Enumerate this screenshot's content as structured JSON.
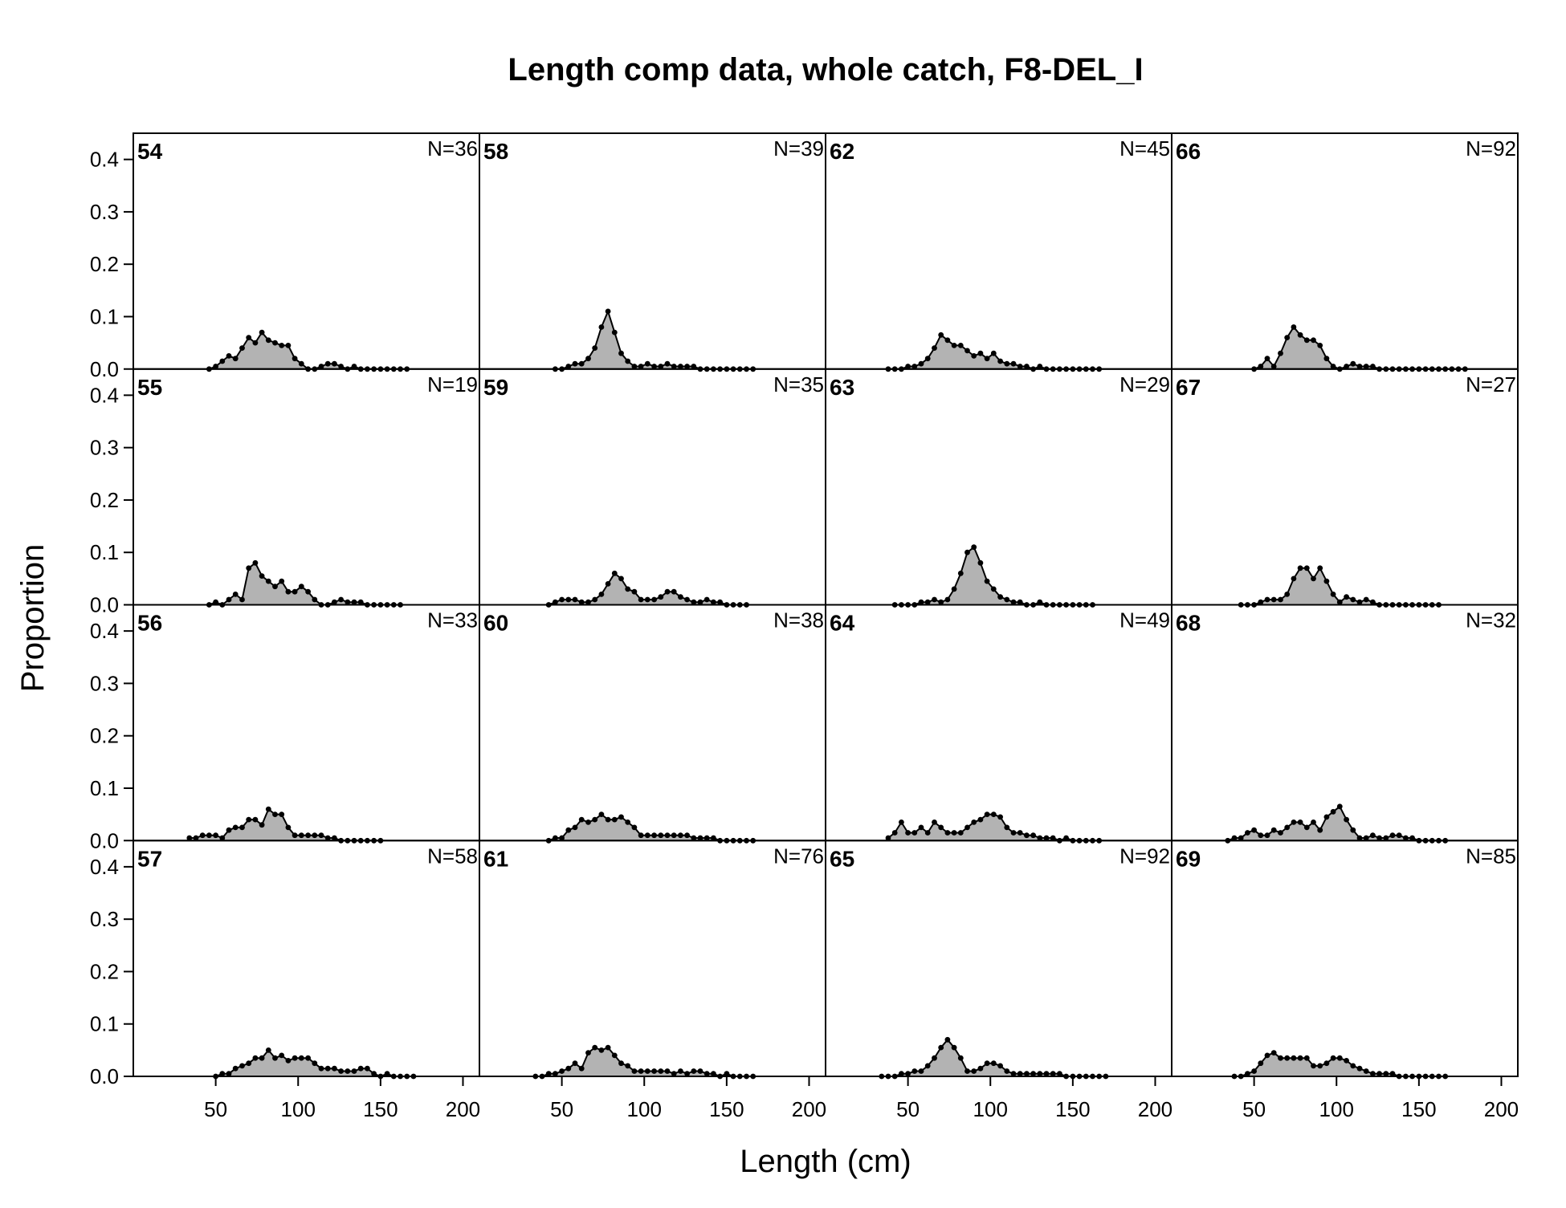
{
  "chart_data": {
    "type": "area",
    "title": "Length comp data, whole catch, F8-DEL_I",
    "xlabel": "Length (cm)",
    "ylabel": "Proportion",
    "xlim": [
      0,
      210
    ],
    "ylim": [
      0,
      0.45
    ],
    "x_ticks": [
      50,
      100,
      150,
      200
    ],
    "y_ticks": [
      0.0,
      0.1,
      0.2,
      0.3,
      0.4
    ],
    "x_tick_labels": [
      "50",
      "100",
      "150",
      "200"
    ],
    "y_tick_labels": [
      "0.0",
      "0.1",
      "0.2",
      "0.3",
      "0.4"
    ],
    "layout": {
      "columns": 4,
      "rows": 4,
      "order": "column-major"
    },
    "colors": {
      "fill": "#b3b3b3",
      "line": "#000000",
      "points": "#000000"
    },
    "panels": [
      {
        "label": "54",
        "n_label": "N=36",
        "x": [
          46,
          50,
          54,
          58,
          62,
          66,
          70,
          74,
          78,
          82,
          86,
          90,
          94,
          98,
          102,
          106,
          110,
          114,
          118,
          122,
          126,
          130,
          134,
          138,
          142,
          146,
          150,
          154,
          158,
          162,
          166
        ],
        "values": [
          0.0,
          0.005,
          0.015,
          0.025,
          0.02,
          0.04,
          0.06,
          0.05,
          0.07,
          0.055,
          0.05,
          0.045,
          0.045,
          0.02,
          0.01,
          0.0,
          0.0,
          0.005,
          0.01,
          0.01,
          0.005,
          0.0,
          0.005,
          0.0,
          0.0,
          0.0,
          0.0,
          0.0,
          0.0,
          0.0,
          0.0
        ]
      },
      {
        "label": "55",
        "n_label": "N=19",
        "x": [
          46,
          50,
          54,
          58,
          62,
          66,
          70,
          74,
          78,
          82,
          86,
          90,
          94,
          98,
          102,
          106,
          110,
          114,
          118,
          122,
          126,
          130,
          134,
          138,
          142,
          146,
          150,
          154,
          158,
          162
        ],
        "values": [
          0.0,
          0.005,
          0.0,
          0.01,
          0.02,
          0.01,
          0.07,
          0.08,
          0.055,
          0.045,
          0.035,
          0.045,
          0.025,
          0.025,
          0.035,
          0.025,
          0.01,
          0.0,
          0.0,
          0.005,
          0.01,
          0.005,
          0.005,
          0.005,
          0.0,
          0.0,
          0.0,
          0.0,
          0.0,
          0.0
        ]
      },
      {
        "label": "56",
        "n_label": "N=33",
        "x": [
          34,
          38,
          42,
          46,
          50,
          54,
          58,
          62,
          66,
          70,
          74,
          78,
          82,
          86,
          90,
          94,
          98,
          102,
          106,
          110,
          114,
          118,
          122,
          126,
          130,
          134,
          138,
          142,
          146,
          150
        ],
        "values": [
          0.005,
          0.005,
          0.01,
          0.01,
          0.01,
          0.005,
          0.02,
          0.025,
          0.025,
          0.04,
          0.04,
          0.03,
          0.06,
          0.05,
          0.05,
          0.025,
          0.01,
          0.01,
          0.01,
          0.01,
          0.01,
          0.005,
          0.005,
          0.0,
          0.0,
          0.0,
          0.0,
          0.0,
          0.0,
          0.0
        ]
      },
      {
        "label": "57",
        "n_label": "N=58",
        "x": [
          50,
          54,
          58,
          62,
          66,
          70,
          74,
          78,
          82,
          86,
          90,
          94,
          98,
          102,
          106,
          110,
          114,
          118,
          122,
          126,
          130,
          134,
          138,
          142,
          146,
          150,
          154,
          158,
          162,
          166,
          170
        ],
        "values": [
          0.0,
          0.005,
          0.005,
          0.015,
          0.02,
          0.025,
          0.035,
          0.035,
          0.05,
          0.035,
          0.04,
          0.03,
          0.035,
          0.035,
          0.035,
          0.025,
          0.015,
          0.015,
          0.015,
          0.01,
          0.01,
          0.01,
          0.015,
          0.015,
          0.005,
          0.0,
          0.005,
          0.0,
          0.0,
          0.0,
          0.0
        ]
      },
      {
        "label": "58",
        "n_label": "N=39",
        "x": [
          46,
          50,
          54,
          58,
          62,
          66,
          70,
          74,
          78,
          82,
          86,
          90,
          94,
          98,
          102,
          106,
          110,
          114,
          118,
          122,
          126,
          130,
          134,
          138,
          142,
          146,
          150,
          154,
          158,
          162,
          166
        ],
        "values": [
          0.0,
          0.0,
          0.005,
          0.01,
          0.01,
          0.02,
          0.04,
          0.08,
          0.11,
          0.07,
          0.03,
          0.015,
          0.005,
          0.005,
          0.01,
          0.005,
          0.005,
          0.01,
          0.005,
          0.005,
          0.005,
          0.005,
          0.0,
          0.0,
          0.0,
          0.0,
          0.0,
          0.0,
          0.0,
          0.0,
          0.0
        ]
      },
      {
        "label": "59",
        "n_label": "N=35",
        "x": [
          42,
          46,
          50,
          54,
          58,
          62,
          66,
          70,
          74,
          78,
          82,
          86,
          90,
          94,
          98,
          102,
          106,
          110,
          114,
          118,
          122,
          126,
          130,
          134,
          138,
          142,
          146,
          150,
          154,
          158,
          162
        ],
        "values": [
          0.0,
          0.005,
          0.01,
          0.01,
          0.01,
          0.005,
          0.005,
          0.01,
          0.02,
          0.04,
          0.06,
          0.05,
          0.03,
          0.025,
          0.01,
          0.01,
          0.01,
          0.015,
          0.025,
          0.025,
          0.015,
          0.01,
          0.005,
          0.005,
          0.01,
          0.005,
          0.005,
          0.0,
          0.0,
          0.0,
          0.0
        ]
      },
      {
        "label": "60",
        "n_label": "N=38",
        "x": [
          42,
          46,
          50,
          54,
          58,
          62,
          66,
          70,
          74,
          78,
          82,
          86,
          90,
          94,
          98,
          102,
          106,
          110,
          114,
          118,
          122,
          126,
          130,
          134,
          138,
          142,
          146,
          150,
          154,
          158,
          162,
          166
        ],
        "values": [
          0.0,
          0.005,
          0.005,
          0.02,
          0.025,
          0.04,
          0.035,
          0.04,
          0.05,
          0.04,
          0.04,
          0.045,
          0.035,
          0.025,
          0.01,
          0.01,
          0.01,
          0.01,
          0.01,
          0.01,
          0.01,
          0.01,
          0.005,
          0.005,
          0.005,
          0.005,
          0.0,
          0.0,
          0.0,
          0.0,
          0.0,
          0.0
        ]
      },
      {
        "label": "61",
        "n_label": "N=76",
        "x": [
          34,
          38,
          42,
          46,
          50,
          54,
          58,
          62,
          66,
          70,
          74,
          78,
          82,
          86,
          90,
          94,
          98,
          102,
          106,
          110,
          114,
          118,
          122,
          126,
          130,
          134,
          138,
          142,
          146,
          150,
          154,
          158,
          162,
          166
        ],
        "values": [
          0.0,
          0.0,
          0.005,
          0.005,
          0.01,
          0.015,
          0.025,
          0.015,
          0.045,
          0.055,
          0.05,
          0.055,
          0.04,
          0.025,
          0.02,
          0.01,
          0.01,
          0.01,
          0.01,
          0.01,
          0.01,
          0.005,
          0.01,
          0.005,
          0.01,
          0.01,
          0.005,
          0.005,
          0.0,
          0.005,
          0.0,
          0.0,
          0.0,
          0.0
        ]
      },
      {
        "label": "62",
        "n_label": "N=45",
        "x": [
          38,
          42,
          46,
          50,
          54,
          58,
          62,
          66,
          70,
          74,
          78,
          82,
          86,
          90,
          94,
          98,
          102,
          106,
          110,
          114,
          118,
          122,
          126,
          130,
          134,
          138,
          142,
          146,
          150,
          154,
          158,
          162,
          166
        ],
        "values": [
          0.0,
          0.0,
          0.0,
          0.005,
          0.005,
          0.01,
          0.02,
          0.04,
          0.065,
          0.055,
          0.045,
          0.045,
          0.035,
          0.025,
          0.03,
          0.02,
          0.03,
          0.015,
          0.01,
          0.01,
          0.005,
          0.005,
          0.0,
          0.005,
          0.0,
          0.0,
          0.0,
          0.0,
          0.0,
          0.0,
          0.0,
          0.0,
          0.0
        ]
      },
      {
        "label": "63",
        "n_label": "N=29",
        "x": [
          42,
          46,
          50,
          54,
          58,
          62,
          66,
          70,
          74,
          78,
          82,
          86,
          90,
          94,
          98,
          102,
          106,
          110,
          114,
          118,
          122,
          126,
          130,
          134,
          138,
          142,
          146,
          150,
          154,
          158,
          162
        ],
        "values": [
          0.0,
          0.0,
          0.0,
          0.0,
          0.005,
          0.005,
          0.01,
          0.005,
          0.01,
          0.03,
          0.06,
          0.1,
          0.11,
          0.08,
          0.045,
          0.03,
          0.015,
          0.01,
          0.005,
          0.005,
          0.0,
          0.0,
          0.005,
          0.0,
          0.0,
          0.0,
          0.0,
          0.0,
          0.0,
          0.0,
          0.0
        ]
      },
      {
        "label": "64",
        "n_label": "N=49",
        "x": [
          38,
          42,
          46,
          50,
          54,
          58,
          62,
          66,
          70,
          74,
          78,
          82,
          86,
          90,
          94,
          98,
          102,
          106,
          110,
          114,
          118,
          122,
          126,
          130,
          134,
          138,
          142,
          146,
          150,
          154,
          158,
          162,
          166
        ],
        "values": [
          0.005,
          0.015,
          0.035,
          0.015,
          0.015,
          0.025,
          0.015,
          0.035,
          0.025,
          0.015,
          0.015,
          0.015,
          0.025,
          0.035,
          0.04,
          0.05,
          0.05,
          0.045,
          0.025,
          0.015,
          0.015,
          0.01,
          0.01,
          0.005,
          0.005,
          0.005,
          0.0,
          0.005,
          0.0,
          0.0,
          0.0,
          0.0,
          0.0
        ]
      },
      {
        "label": "65",
        "n_label": "N=92",
        "x": [
          34,
          38,
          42,
          46,
          50,
          54,
          58,
          62,
          66,
          70,
          74,
          78,
          82,
          86,
          90,
          94,
          98,
          102,
          106,
          110,
          114,
          118,
          122,
          126,
          130,
          134,
          138,
          142,
          146,
          150,
          154,
          158,
          162,
          166,
          170
        ],
        "values": [
          0.0,
          0.0,
          0.0,
          0.005,
          0.005,
          0.01,
          0.01,
          0.02,
          0.035,
          0.055,
          0.07,
          0.055,
          0.035,
          0.01,
          0.01,
          0.015,
          0.025,
          0.025,
          0.02,
          0.01,
          0.005,
          0.005,
          0.005,
          0.005,
          0.005,
          0.005,
          0.005,
          0.005,
          0.0,
          0.0,
          0.0,
          0.0,
          0.0,
          0.0,
          0.0
        ]
      },
      {
        "label": "66",
        "n_label": "N=92",
        "x": [
          50,
          54,
          58,
          62,
          66,
          70,
          74,
          78,
          82,
          86,
          90,
          94,
          98,
          102,
          106,
          110,
          114,
          118,
          122,
          126,
          130,
          134,
          138,
          142,
          146,
          150,
          154,
          158,
          162,
          166,
          170,
          174,
          178
        ],
        "values": [
          0.0,
          0.005,
          0.02,
          0.005,
          0.03,
          0.06,
          0.08,
          0.065,
          0.055,
          0.055,
          0.045,
          0.02,
          0.005,
          0.0,
          0.005,
          0.01,
          0.005,
          0.005,
          0.005,
          0.0,
          0.0,
          0.0,
          0.0,
          0.0,
          0.0,
          0.0,
          0.0,
          0.0,
          0.0,
          0.0,
          0.0,
          0.0,
          0.0
        ]
      },
      {
        "label": "67",
        "n_label": "N=27",
        "x": [
          42,
          46,
          50,
          54,
          58,
          62,
          66,
          70,
          74,
          78,
          82,
          86,
          90,
          94,
          98,
          102,
          106,
          110,
          114,
          118,
          122,
          126,
          130,
          134,
          138,
          142,
          146,
          150,
          154,
          158,
          162
        ],
        "values": [
          0.0,
          0.0,
          0.0,
          0.005,
          0.01,
          0.01,
          0.01,
          0.02,
          0.05,
          0.07,
          0.07,
          0.05,
          0.07,
          0.045,
          0.02,
          0.005,
          0.015,
          0.01,
          0.005,
          0.01,
          0.005,
          0.0,
          0.0,
          0.0,
          0.0,
          0.0,
          0.0,
          0.0,
          0.0,
          0.0,
          0.0
        ]
      },
      {
        "label": "68",
        "n_label": "N=32",
        "x": [
          34,
          38,
          42,
          46,
          50,
          54,
          58,
          62,
          66,
          70,
          74,
          78,
          82,
          86,
          90,
          94,
          98,
          102,
          106,
          110,
          114,
          118,
          122,
          126,
          130,
          134,
          138,
          142,
          146,
          150,
          154,
          158,
          162,
          166
        ],
        "values": [
          0.0,
          0.005,
          0.005,
          0.015,
          0.02,
          0.01,
          0.01,
          0.02,
          0.015,
          0.025,
          0.035,
          0.035,
          0.025,
          0.035,
          0.02,
          0.045,
          0.055,
          0.065,
          0.04,
          0.02,
          0.005,
          0.005,
          0.01,
          0.005,
          0.005,
          0.01,
          0.01,
          0.005,
          0.005,
          0.0,
          0.0,
          0.0,
          0.0,
          0.0
        ]
      },
      {
        "label": "69",
        "n_label": "N=85",
        "x": [
          38,
          42,
          46,
          50,
          54,
          58,
          62,
          66,
          70,
          74,
          78,
          82,
          86,
          90,
          94,
          98,
          102,
          106,
          110,
          114,
          118,
          122,
          126,
          130,
          134,
          138,
          142,
          146,
          150,
          154,
          158,
          162,
          166
        ],
        "values": [
          0.0,
          0.0,
          0.005,
          0.01,
          0.025,
          0.04,
          0.045,
          0.035,
          0.035,
          0.035,
          0.035,
          0.035,
          0.02,
          0.02,
          0.025,
          0.035,
          0.035,
          0.03,
          0.02,
          0.015,
          0.01,
          0.005,
          0.005,
          0.005,
          0.005,
          0.0,
          0.0,
          0.0,
          0.0,
          0.0,
          0.0,
          0.0,
          0.0
        ]
      }
    ]
  }
}
